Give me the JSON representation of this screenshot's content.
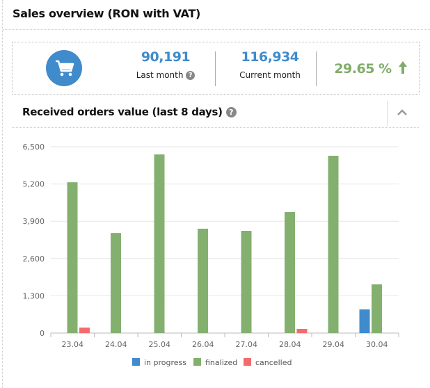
{
  "header": {
    "title": "Sales overview (RON with VAT)"
  },
  "stats": {
    "last_month_value": "90,191",
    "last_month_label": "Last month",
    "current_month_value": "116,934",
    "current_month_label": "Current month",
    "change": "29.65 %",
    "help": "?"
  },
  "section": {
    "title": "Received orders value (last 8 days)",
    "help": "?"
  },
  "chart_data": {
    "type": "bar",
    "title": "Received orders value (last 8 days)",
    "categories": [
      "23.04",
      "24.04",
      "25.04",
      "26.04",
      "27.04",
      "28.04",
      "29.04",
      "30.04"
    ],
    "y_ticks": [
      "0",
      "1,300",
      "2,600",
      "3,900",
      "5,200",
      "6,500"
    ],
    "ylim": [
      0,
      6500
    ],
    "grid": true,
    "legend": "bottom-center",
    "series": [
      {
        "name": "in progress",
        "color": "#3f8bcc",
        "values": [
          0,
          0,
          0,
          0,
          0,
          0,
          0,
          825
        ]
      },
      {
        "name": "finalized",
        "color": "#84b06f",
        "values": [
          5260,
          3490,
          6230,
          3640,
          3565,
          4220,
          6185,
          1700
        ]
      },
      {
        "name": "cancelled",
        "color": "#f36b6b",
        "values": [
          190,
          0,
          0,
          0,
          0,
          145,
          0,
          0
        ]
      }
    ]
  }
}
